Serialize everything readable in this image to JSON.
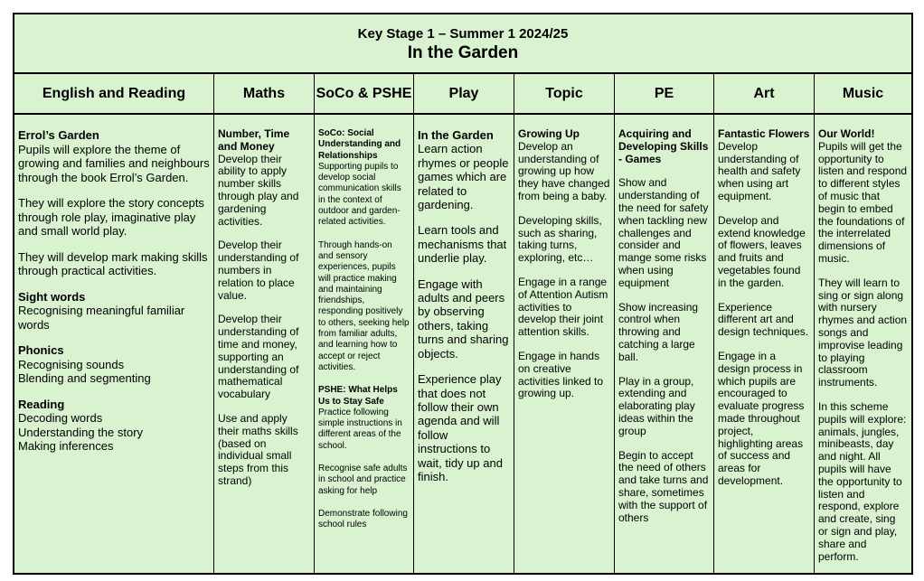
{
  "title": {
    "line1": "Key Stage 1 – Summer 1 2024/25",
    "line2": "In the Garden"
  },
  "background_color": "#d9f2d0",
  "columns": [
    {
      "header": "English and Reading",
      "blocks": [
        {
          "title": "Errol’s Garden",
          "lines": [
            "Pupils will explore the theme of growing and families and neighbours through the book Errol’s Garden."
          ]
        },
        {
          "lines": [
            "They will explore the story concepts through role play, imaginative play and small world play."
          ]
        },
        {
          "lines": [
            "They will develop mark making skills through practical activities."
          ]
        },
        {
          "title": "Sight words",
          "lines": [
            "Recognising meaningful familiar words"
          ]
        },
        {
          "title": "Phonics",
          "lines": [
            "Recognising sounds",
            "Blending and segmenting"
          ]
        },
        {
          "title": "Reading",
          "lines": [
            "Decoding words",
            "Understanding the story",
            "Making inferences"
          ]
        }
      ]
    },
    {
      "header": "Maths",
      "blocks": [
        {
          "title": "Number, Time and Money",
          "lines": [
            "Develop their ability to apply number skills through play and gardening activities."
          ]
        },
        {
          "lines": [
            "Develop their understanding of numbers in relation to place value."
          ]
        },
        {
          "lines": [
            "Develop their understanding of time and money, supporting an understanding of mathematical vocabulary"
          ]
        },
        {
          "lines": [
            "Use and apply their maths skills (based on individual small steps from this strand)"
          ]
        }
      ]
    },
    {
      "header": "SoCo & PSHE",
      "blocks": [
        {
          "title": "SoCo: Social Understanding and Relationships",
          "lines": [
            "Supporting pupils to develop social communication skills in the context of outdoor and garden-related activities."
          ]
        },
        {
          "lines": [
            "Through hands-on and sensory experiences, pupils will practice making and maintaining friendships, responding positively to others, seeking help from familiar adults, and learning how to accept or reject activities."
          ]
        },
        {
          "title": "PSHE: What Helps Us to Stay Safe",
          "lines": [
            "Practice following simple instructions in different areas of the school."
          ]
        },
        {
          "lines": [
            "Recognise safe adults in school and practice asking for help"
          ]
        },
        {
          "lines": [
            "Demonstrate following school rules"
          ]
        }
      ]
    },
    {
      "header": "Play",
      "blocks": [
        {
          "title": "In the Garden",
          "lines": [
            "Learn action rhymes or people games which are related to gardening."
          ]
        },
        {
          "lines": [
            "Learn tools and mechanisms that underlie play."
          ]
        },
        {
          "lines": [
            "Engage with adults and peers by observing others, taking turns and sharing objects."
          ]
        },
        {
          "lines": [
            "Experience play that does not follow their own agenda and will follow instructions to wait, tidy up and finish."
          ]
        }
      ]
    },
    {
      "header": "Topic",
      "blocks": [
        {
          "title": "Growing Up",
          "lines": [
            "Develop an understanding of growing up how they have changed from being a baby."
          ]
        },
        {
          "lines": [
            "Developing skills, such as sharing, taking turns, exploring, etc…"
          ]
        },
        {
          "lines": [
            "Engage in a range of Attention Autism activities to develop their joint attention skills."
          ]
        },
        {
          "lines": [
            "Engage in hands on creative activities linked to growing up."
          ]
        }
      ]
    },
    {
      "header": "PE",
      "blocks": [
        {
          "title": "Acquiring and Developing Skills - Games",
          "lines": []
        },
        {
          "lines": [
            "Show and understanding of the need for safety when tackling new challenges and consider and mange some risks when using equipment"
          ]
        },
        {
          "lines": [
            "Show increasing control when throwing and catching a large ball."
          ]
        },
        {
          "lines": [
            "Play in a group, extending and elaborating play ideas within the group"
          ]
        },
        {
          "lines": [
            "Begin to accept the need of others and take turns and share, sometimes with the support of others"
          ]
        }
      ]
    },
    {
      "header": "Art",
      "blocks": [
        {
          "title": "Fantastic Flowers",
          "lines": [
            "Develop understanding of health and safety when using art equipment."
          ]
        },
        {
          "lines": [
            "Develop and extend knowledge of flowers, leaves and fruits and vegetables found in the garden."
          ]
        },
        {
          "lines": [
            "Experience different art and design techniques."
          ]
        },
        {
          "lines": [
            "Engage in a design process in which pupils are encouraged to evaluate progress made throughout project, highlighting areas of success and areas for development."
          ]
        }
      ]
    },
    {
      "header": "Music",
      "blocks": [
        {
          "title": "Our World!",
          "lines": [
            "Pupils will get the opportunity to listen and respond to different styles of music that begin to embed the foundations of the interrelated dimensions of music."
          ]
        },
        {
          "lines": [
            "They will learn to sing or sign along with nursery rhymes and action songs and improvise leading to playing classroom instruments."
          ]
        },
        {
          "lines": [
            "In this scheme pupils will explore: animals, jungles, minibeasts, day and night. All pupils will have the opportunity to listen and respond, explore and create, sing or sign and play, share and perform."
          ]
        }
      ]
    }
  ]
}
